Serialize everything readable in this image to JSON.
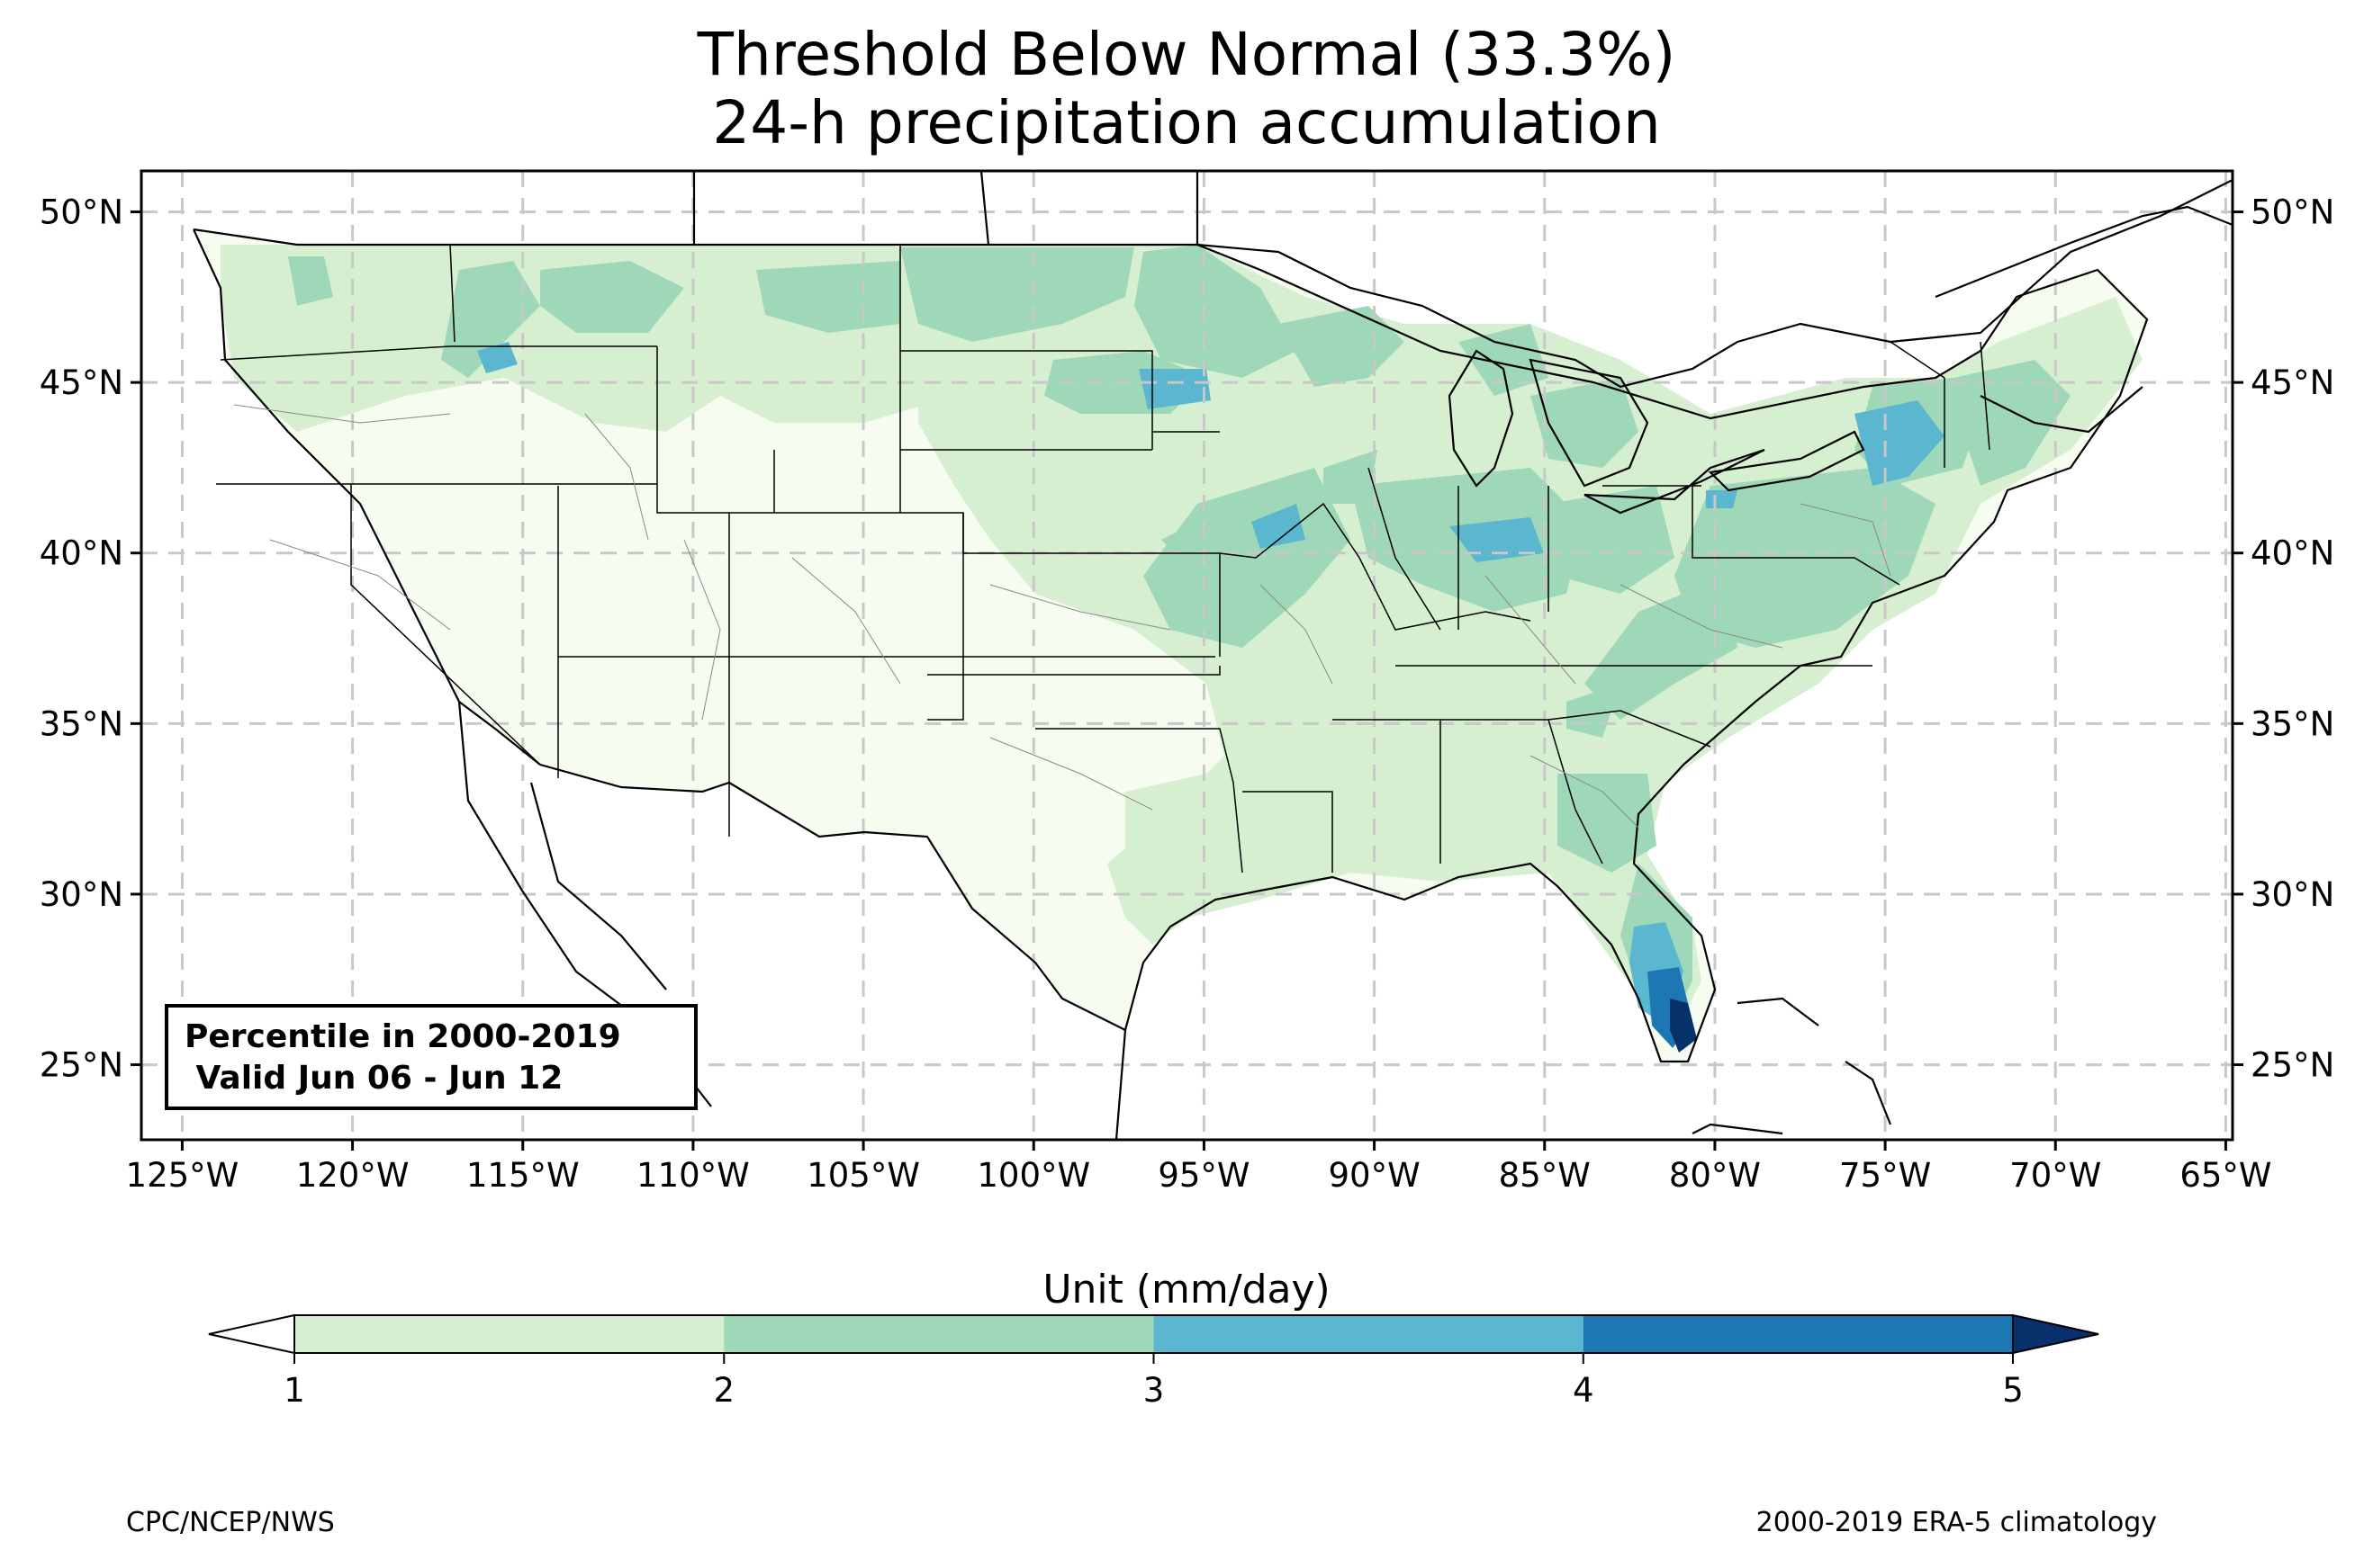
{
  "title": {
    "line1": "Threshold Below Normal (33.3%)",
    "line2": "24-h precipitation accumulation"
  },
  "map": {
    "lat_labels": [
      "50°N",
      "45°N",
      "40°N",
      "35°N",
      "30°N",
      "25°N"
    ],
    "lat_values": [
      50,
      45,
      40,
      35,
      30,
      25
    ],
    "lon_labels": [
      "125°W",
      "120°W",
      "115°W",
      "110°W",
      "105°W",
      "100°W",
      "95°W",
      "90°W",
      "85°W",
      "80°W",
      "75°W",
      "70°W",
      "65°W"
    ],
    "lon_values": [
      -125,
      -120,
      -115,
      -110,
      -105,
      -100,
      -95,
      -90,
      -85,
      -80,
      -75,
      -70,
      -65
    ],
    "extent": {
      "lon_min": -126.2,
      "lon_max": -64.8,
      "lat_min": 22.8,
      "lat_max": 51.2
    }
  },
  "infobox": {
    "line1": "Percentile in 2000-2019",
    "line2": " Valid Jun 06 - Jun 12"
  },
  "colorbar": {
    "title": "Unit (mm/day)",
    "ticks": [
      "1",
      "2",
      "3",
      "4",
      "5"
    ],
    "colors": {
      "below": "#f7fcf0",
      "1-2": "#d6efd0",
      "2-3": "#9fd8b8",
      "3-4": "#5bb6cf",
      "4-5": "#1c77b4",
      "above": "#08306b"
    }
  },
  "footer": {
    "left": "CPC/NCEP/NWS",
    "right": "2000-2019 ERA-5 climatology"
  }
}
